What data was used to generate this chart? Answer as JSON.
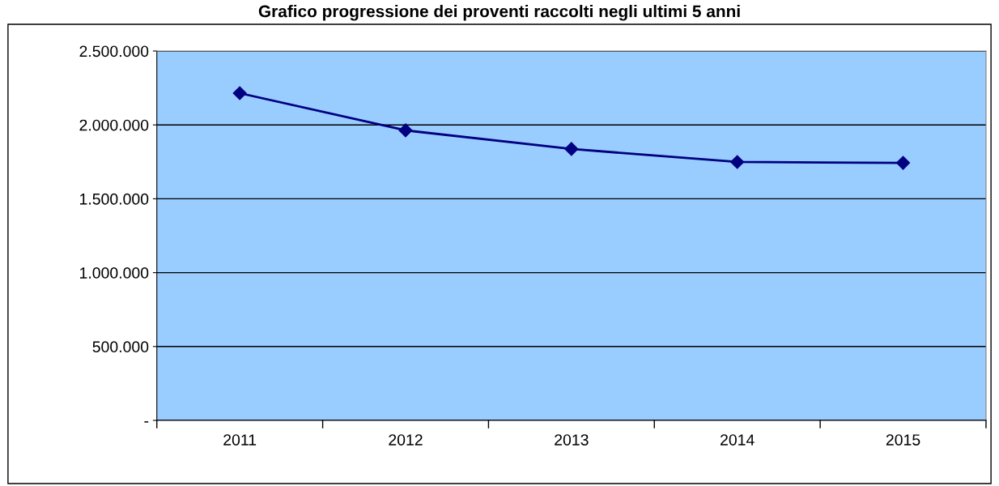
{
  "chart_data": {
    "type": "line",
    "title": "Grafico progressione dei proventi raccolti negli ultimi 5 anni",
    "categories": [
      "2011",
      "2012",
      "2013",
      "2014",
      "2015"
    ],
    "series": [
      {
        "color": "#000080",
        "values": [
          2215000,
          1963000,
          1837000,
          1749000,
          1743000
        ]
      }
    ],
    "ylim": [
      0,
      2500000
    ],
    "yticks": [
      {
        "value": 0,
        "label": "-"
      },
      {
        "value": 500000,
        "label": "500.000"
      },
      {
        "value": 1000000,
        "label": "1.000.000"
      },
      {
        "value": 1500000,
        "label": "1.500.000"
      },
      {
        "value": 2000000,
        "label": "2.000.000"
      },
      {
        "value": 2500000,
        "label": "2.500.000"
      }
    ],
    "grid": "y",
    "marker": "diamond",
    "line_style": "solid",
    "legend": false
  }
}
